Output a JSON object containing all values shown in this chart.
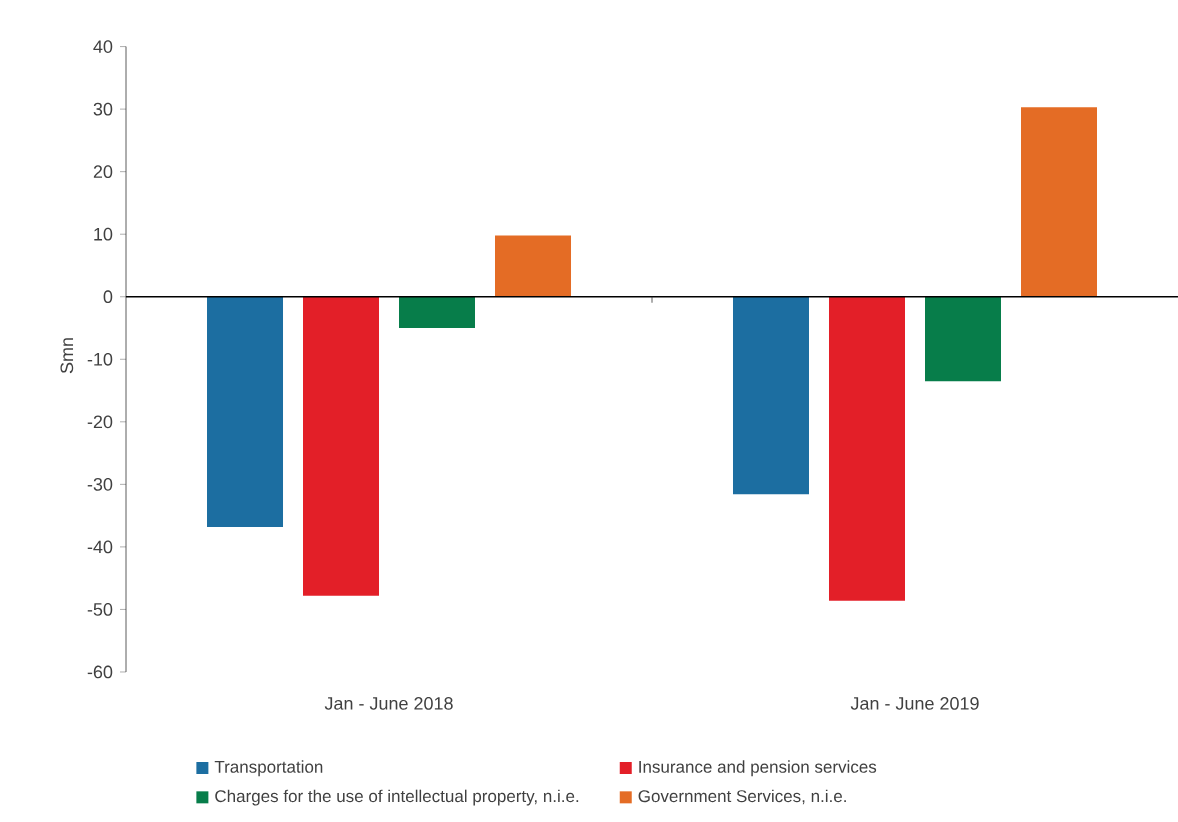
{
  "chart_data": {
    "type": "bar",
    "ylabel": "Smn",
    "categories": [
      "Jan - June 2018",
      "Jan - June 2019"
    ],
    "series": [
      {
        "name": "Transportation",
        "color": "#1c6ea1",
        "values": [
          -36.8,
          -31.6
        ]
      },
      {
        "name": "Insurance and pension services",
        "color": "#e31f28",
        "values": [
          -47.8,
          -48.6
        ]
      },
      {
        "name": "Charges for the use of intellectual property, n.i.e.",
        "color": "#077d4a",
        "values": [
          -5.0,
          -13.5
        ]
      },
      {
        "name": "Government Services, n.i.e.",
        "color": "#e46c25",
        "values": [
          9.8,
          30.3
        ]
      }
    ],
    "ylim": [
      -60,
      40
    ],
    "yticks": [
      -60,
      -50,
      -40,
      -30,
      -20,
      -10,
      0,
      10,
      20,
      30,
      40
    ],
    "legend": "bottom"
  }
}
